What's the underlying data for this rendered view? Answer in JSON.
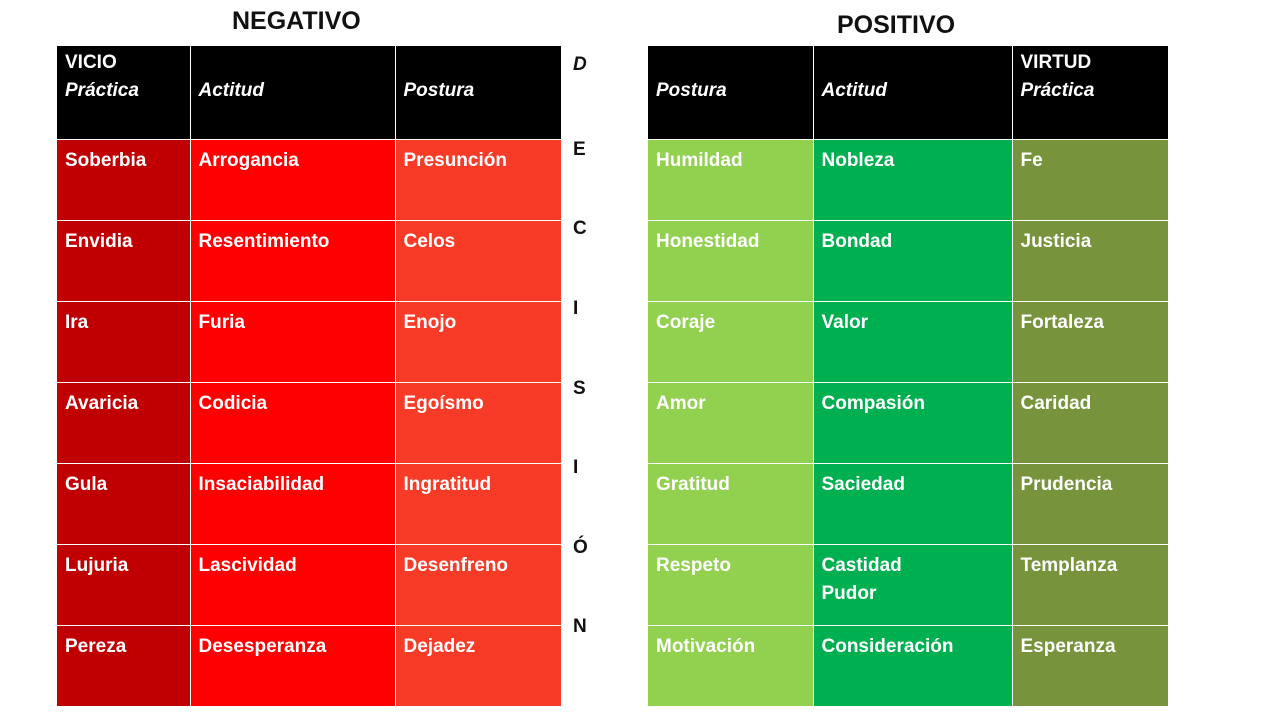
{
  "negative": {
    "title": "NEGATIVO",
    "headers": [
      {
        "line1": "VICIO",
        "line2": "Práctica"
      },
      {
        "line1": "",
        "line2": "Actitud"
      },
      {
        "line1": "",
        "line2": "Postura"
      }
    ],
    "rows": [
      [
        "Soberbia",
        "Arrogancia",
        "Presunción"
      ],
      [
        "Envidia",
        "Resentimiento",
        "Celos"
      ],
      [
        "Ira",
        "Furia",
        "Enojo"
      ],
      [
        "Avaricia",
        "Codicia",
        "Egoísmo"
      ],
      [
        "Gula",
        "Insaciabilidad",
        "Ingratitud"
      ],
      [
        "Lujuria",
        "Lascividad",
        "Desenfreno"
      ],
      [
        "Pereza",
        "Desesperanza",
        "Dejadez"
      ]
    ],
    "colors": [
      "#c00000",
      "#ff0000",
      "#f83b27"
    ]
  },
  "decision": {
    "letters": [
      "D",
      "E",
      "C",
      "I",
      "S",
      "I",
      "Ó",
      "N"
    ]
  },
  "positive": {
    "title": "POSITIVO",
    "headers": [
      {
        "line1": "",
        "line2": "Postura"
      },
      {
        "line1": "",
        "line2": "Actitud"
      },
      {
        "line1": "VIRTUD",
        "line2": "Práctica"
      }
    ],
    "rows": [
      [
        "Humildad",
        "Nobleza",
        "Fe"
      ],
      [
        "Honestidad",
        "Bondad",
        "Justicia"
      ],
      [
        "Coraje",
        "Valor",
        "Fortaleza"
      ],
      [
        "Amor",
        "Compasión",
        "Caridad"
      ],
      [
        "Gratitud",
        "Saciedad",
        "Prudencia"
      ],
      [
        "Respeto",
        "Castidad\nPudor",
        "Templanza"
      ],
      [
        "Motivación",
        "Consideración",
        "Esperanza"
      ]
    ],
    "colors": [
      "#92d050",
      "#00b050",
      "#77933c"
    ]
  }
}
